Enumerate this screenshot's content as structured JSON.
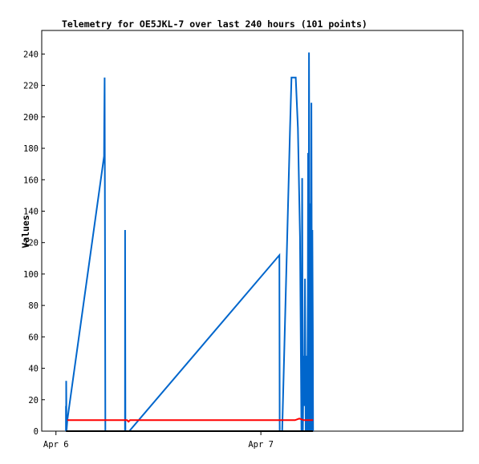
{
  "chart_data": {
    "type": "line",
    "title": "Telemetry for OE5JKL-7 over last 240 hours (101 points)",
    "xlabel": "",
    "ylabel": "Values",
    "ylim": [
      0,
      255
    ],
    "yticks": [
      0,
      20,
      40,
      60,
      80,
      100,
      120,
      140,
      160,
      180,
      200,
      220,
      240
    ],
    "xlim": [
      "2024-04-05T22:20",
      "2024-04-07T23:40"
    ],
    "xticks": [
      {
        "label": "Apr 6",
        "value": "2024-04-06T00:00"
      },
      {
        "label": "Apr 7",
        "value": "2024-04-07T00:00"
      }
    ],
    "grid": false,
    "series": [
      {
        "color": "#0066cc",
        "points": [
          [
            "2024-04-06T01:10",
            0
          ],
          [
            "2024-04-06T01:10",
            16
          ],
          [
            "2024-04-06T01:12",
            0
          ],
          [
            "2024-04-06T01:12",
            32
          ],
          [
            "2024-04-06T01:14",
            0
          ],
          [
            "2024-04-06T01:20",
            7
          ],
          [
            "2024-04-06T05:38",
            175
          ],
          [
            "2024-04-06T05:39",
            193
          ],
          [
            "2024-04-06T05:42",
            225
          ],
          [
            "2024-04-06T05:45",
            112
          ],
          [
            "2024-04-06T05:47",
            0
          ],
          [
            "2024-04-06T08:05",
            0
          ],
          [
            "2024-04-06T08:06",
            128
          ],
          [
            "2024-04-06T08:08",
            0
          ],
          [
            "2024-04-06T08:35",
            0
          ],
          [
            "2024-04-07T02:10",
            112
          ],
          [
            "2024-04-07T02:12",
            0
          ],
          [
            "2024-04-07T02:30",
            0
          ],
          [
            "2024-04-07T03:25",
            193
          ],
          [
            "2024-04-07T03:35",
            225
          ],
          [
            "2024-04-07T04:05",
            225
          ],
          [
            "2024-04-07T04:20",
            193
          ],
          [
            "2024-04-07T04:35",
            124
          ],
          [
            "2024-04-07T04:45",
            0
          ],
          [
            "2024-04-07T04:50",
            161
          ],
          [
            "2024-04-07T04:55",
            0
          ],
          [
            "2024-04-07T05:00",
            48
          ],
          [
            "2024-04-07T05:05",
            16
          ],
          [
            "2024-04-07T05:10",
            97
          ],
          [
            "2024-04-07T05:15",
            0
          ],
          [
            "2024-04-07T05:20",
            48
          ],
          [
            "2024-04-07T05:25",
            0
          ],
          [
            "2024-04-07T05:30",
            88
          ],
          [
            "2024-04-07T05:32",
            177
          ],
          [
            "2024-04-07T05:35",
            0
          ],
          [
            "2024-04-07T05:38",
            241
          ],
          [
            "2024-04-07T05:40",
            193
          ],
          [
            "2024-04-07T05:45",
            0
          ],
          [
            "2024-04-07T05:50",
            145
          ],
          [
            "2024-04-07T05:52",
            0
          ],
          [
            "2024-04-07T05:55",
            209
          ],
          [
            "2024-04-07T06:00",
            0
          ],
          [
            "2024-04-07T06:02",
            128
          ],
          [
            "2024-04-07T06:05",
            64
          ],
          [
            "2024-04-07T06:07",
            0
          ]
        ]
      },
      {
        "color": "#ff0000",
        "points": [
          [
            "2024-04-06T01:20",
            7
          ],
          [
            "2024-04-06T08:20",
            7
          ],
          [
            "2024-04-06T08:30",
            6
          ],
          [
            "2024-04-06T08:40",
            7
          ],
          [
            "2024-04-07T04:00",
            7
          ],
          [
            "2024-04-07T04:30",
            8
          ],
          [
            "2024-04-07T05:00",
            7
          ],
          [
            "2024-04-07T06:07",
            7
          ]
        ]
      },
      {
        "color": "#000000",
        "points": [
          [
            "2024-04-06T01:10",
            0
          ],
          [
            "2024-04-07T06:07",
            0
          ]
        ]
      }
    ]
  }
}
